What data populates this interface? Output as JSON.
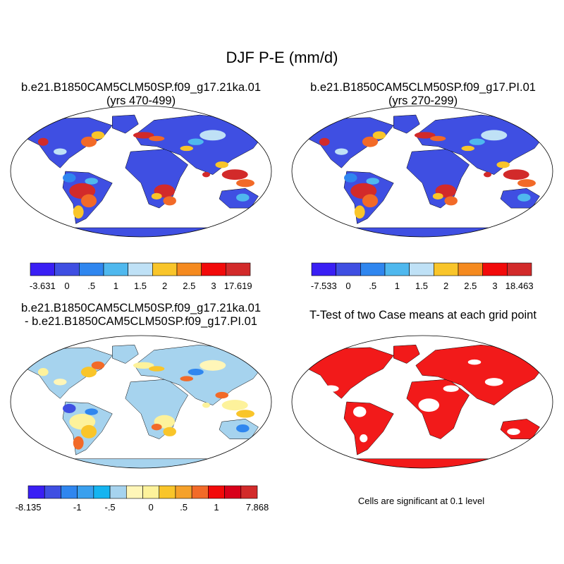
{
  "figure": {
    "title": "DJF P-E (mm/d)"
  },
  "panels": [
    {
      "title_line1": "b.e21.B1850CAM5CLM50SP.f09_g17.21ka.01",
      "title_line2": "(yrs 470-499)",
      "kind": "field",
      "land": "#3f4fe2",
      "ocean": "#ffffff",
      "hot": [
        "#d22a2a",
        "#f26a28",
        "#f9c52a"
      ],
      "mid": [
        "#2f86ef",
        "#4fb8ee",
        "#bfe1f6"
      ]
    },
    {
      "title_line1": "b.e21.B1850CAM5CLM50SP.f09_g17.PI.01",
      "title_line2": "(yrs 270-299)",
      "kind": "field",
      "land": "#3f4fe2",
      "ocean": "#ffffff",
      "hot": [
        "#d22a2a",
        "#f26a28",
        "#f9c52a"
      ],
      "mid": [
        "#2f86ef",
        "#4fb8ee",
        "#bfe1f6"
      ]
    },
    {
      "title_line1": "b.e21.B1850CAM5CLM50SP.f09_g17.21ka.01",
      "title_line2": "- b.e21.B1850CAM5CLM50SP.f09_g17.PI.01",
      "kind": "diff",
      "land": "#a6d3ee",
      "ocean": "#ffffff",
      "hot": [
        "#fdf29b",
        "#f9c52a",
        "#f26a28"
      ],
      "mid": [
        "#3f4fe2",
        "#2f86ef",
        "#fff6b8"
      ]
    },
    {
      "title_line1": "T-Test of two Case means at each grid point",
      "title_line2": "",
      "kind": "signif",
      "land": "#f21a1a",
      "ocean": "#ffffff",
      "note": "Cells are significant at 0.1 level"
    }
  ],
  "chart_data": [
    {
      "type": "heatmap",
      "title": "b.e21.B1850CAM5CLM50SP.f09_g17.21ka.01 (yrs 470-499)",
      "colorbar": {
        "colors": [
          "#3a1ff4",
          "#3f4fe2",
          "#2f86ef",
          "#4fb8ee",
          "#bfe1f6",
          "#f9c52a",
          "#f58a1f",
          "#f20a0a",
          "#d22a2a"
        ],
        "tick_labels": [
          "-3.631",
          "0",
          ".5",
          "1",
          "1.5",
          "2",
          "2.5",
          "3",
          "17.619"
        ],
        "min": -3.631,
        "max": 17.619
      }
    },
    {
      "type": "heatmap",
      "title": "b.e21.B1850CAM5CLM50SP.f09_g17.PI.01 (yrs 270-299)",
      "colorbar": {
        "colors": [
          "#3a1ff4",
          "#3f4fe2",
          "#2f86ef",
          "#4fb8ee",
          "#bfe1f6",
          "#f9c52a",
          "#f58a1f",
          "#f20a0a",
          "#d22a2a"
        ],
        "tick_labels": [
          "-7.533",
          "0",
          ".5",
          "1",
          "1.5",
          "2",
          "2.5",
          "3",
          "18.463"
        ],
        "min": -7.533,
        "max": 18.463
      }
    },
    {
      "type": "heatmap",
      "title": "b.e21.B1850CAM5CLM50SP.f09_g17.21ka.01 - b.e21.B1850CAM5CLM50SP.f09_g17.PI.01",
      "colorbar": {
        "colors": [
          "#3a1ff4",
          "#3f4fe2",
          "#2f86ef",
          "#3aa0ee",
          "#15b4f0",
          "#a6d3ee",
          "#fff6b8",
          "#fdf29b",
          "#f9c52a",
          "#f5a12a",
          "#f26a28",
          "#f20a0a",
          "#d8001a",
          "#d22a2a"
        ],
        "tick_labels": [
          "-8.135",
          "-1",
          "-.5",
          "0",
          ".5",
          "1",
          "7.868"
        ],
        "min": -8.135,
        "max": 7.868
      }
    },
    {
      "type": "heatmap",
      "title": "T-Test of two Case means at each grid point",
      "note": "Cells are significant at 0.1 level"
    }
  ]
}
